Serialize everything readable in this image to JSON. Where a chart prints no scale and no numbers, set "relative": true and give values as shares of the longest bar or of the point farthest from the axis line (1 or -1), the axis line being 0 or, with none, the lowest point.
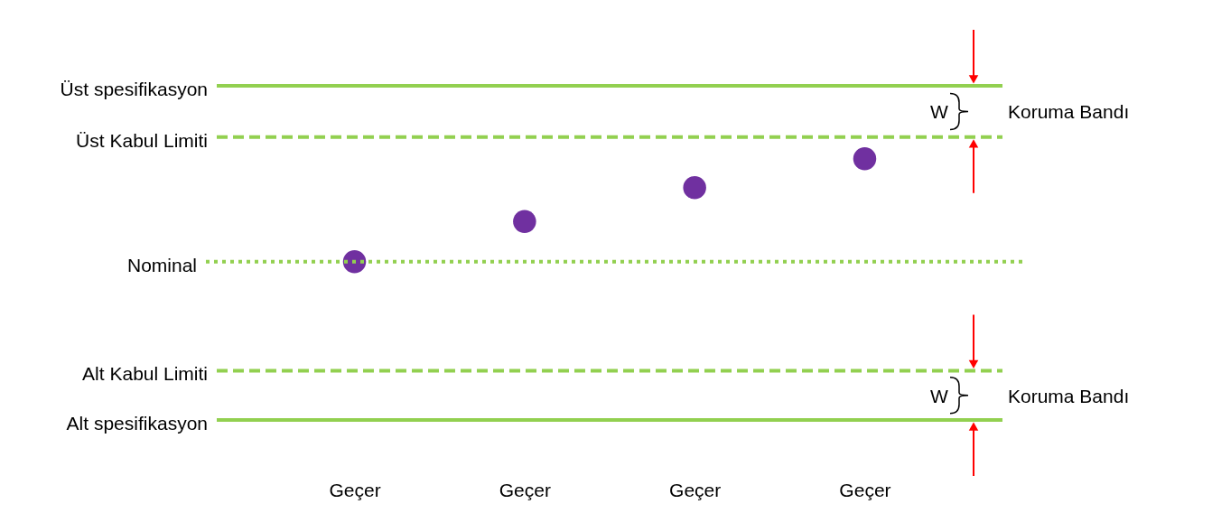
{
  "chart_data": {
    "type": "scatter",
    "relative": true,
    "categories": [
      "Geçer",
      "Geçer",
      "Geçer",
      "Geçer"
    ],
    "values": [
      0,
      0.39,
      0.72,
      1
    ],
    "color": "#7030a0",
    "marker": "circle",
    "ref_lines": [
      {
        "axis": "y",
        "value": 1.71,
        "label": "Üst spesifikasyon",
        "color": "#92d050",
        "line_style": "solid"
      },
      {
        "axis": "y",
        "value": 1.21,
        "label": "Üst Kabul Limiti",
        "color": "#92d050",
        "line_style": "dashed"
      },
      {
        "axis": "y",
        "value": 0,
        "label": "Nominal",
        "color": "#92d050",
        "line_style": "dotted"
      },
      {
        "axis": "y",
        "value": -1.06,
        "label": "Alt Kabul Limiti",
        "color": "#92d050",
        "line_style": "dashed"
      },
      {
        "axis": "y",
        "value": -1.54,
        "label": "Alt spesifikasyon",
        "color": "#92d050",
        "line_style": "solid"
      }
    ],
    "annotations": [
      "W",
      "Koruma Bandı",
      "W",
      "Koruma Bandı"
    ]
  }
}
